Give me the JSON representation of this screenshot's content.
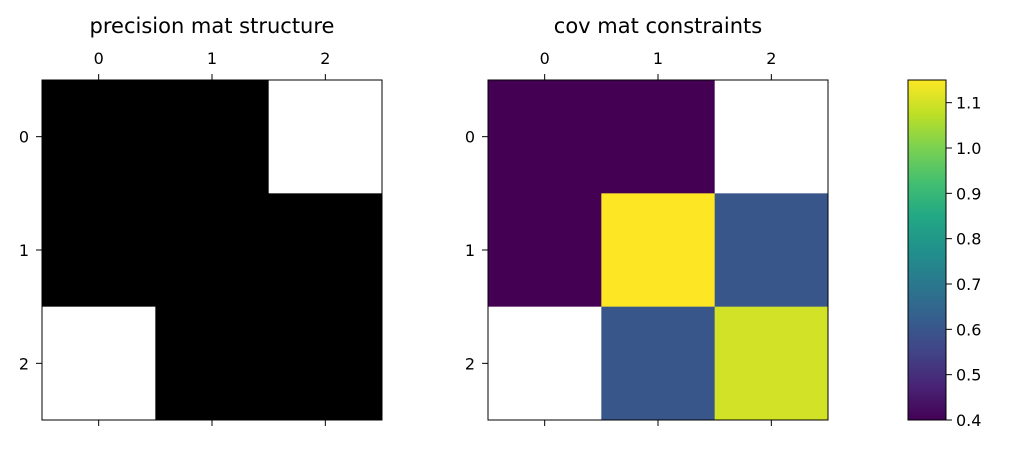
{
  "chart_data": [
    {
      "type": "heatmap",
      "title": "precision mat structure",
      "x_ticks": [
        "0",
        "1",
        "2"
      ],
      "y_ticks": [
        "0",
        "1",
        "2"
      ],
      "cells": [
        [
          "black",
          "black",
          "white"
        ],
        [
          "black",
          "black",
          "black"
        ],
        [
          "white",
          "black",
          "black"
        ]
      ],
      "colors": {
        "black": "#000000",
        "white": "#ffffff"
      }
    },
    {
      "type": "heatmap",
      "title": "cov mat constraints",
      "x_ticks": [
        "0",
        "1",
        "2"
      ],
      "y_ticks": [
        "0",
        "1",
        "2"
      ],
      "values": [
        [
          0.4,
          0.4,
          null
        ],
        [
          0.4,
          1.15,
          0.6
        ],
        [
          null,
          0.6,
          1.1
        ]
      ],
      "missing_color": "#ffffff",
      "colormap": "viridis",
      "vmin": 0.4,
      "vmax": 1.15,
      "colorbar_ticks": [
        "0.4",
        "0.5",
        "0.6",
        "0.7",
        "0.8",
        "0.9",
        "1.0",
        "1.1"
      ]
    }
  ]
}
